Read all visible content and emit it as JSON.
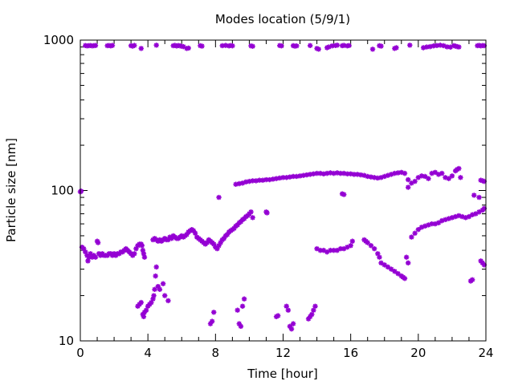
{
  "chart_data": {
    "type": "scatter",
    "title": "Modes location (5/9/1)",
    "xlabel": "Time [hour]",
    "ylabel": "Particle size [nm]",
    "xlim": [
      0,
      24
    ],
    "ylim": [
      10,
      1000
    ],
    "yscale": "log",
    "grid": false,
    "legend": "none",
    "marker_color": "#9400D3",
    "x_ticks": [
      0,
      4,
      8,
      12,
      16,
      20,
      24
    ],
    "x_tick_labels": [
      "0",
      "4",
      "8",
      "12",
      "16",
      "20",
      "24"
    ],
    "y_ticks": [
      10,
      100,
      1000
    ],
    "y_tick_labels": [
      "10",
      "100",
      "1000"
    ],
    "points": [
      [
        0.0,
        98
      ],
      [
        0.05,
        99
      ],
      [
        0.1,
        42
      ],
      [
        0.2,
        41
      ],
      [
        0.3,
        39
      ],
      [
        0.4,
        37
      ],
      [
        0.45,
        34
      ],
      [
        0.5,
        36
      ],
      [
        0.6,
        38
      ],
      [
        0.7,
        36
      ],
      [
        0.8,
        37
      ],
      [
        0.9,
        36
      ],
      [
        1.0,
        46
      ],
      [
        1.05,
        45
      ],
      [
        1.1,
        38
      ],
      [
        1.2,
        37
      ],
      [
        1.3,
        38
      ],
      [
        1.4,
        37
      ],
      [
        1.5,
        37
      ],
      [
        1.6,
        37
      ],
      [
        1.7,
        38
      ],
      [
        1.8,
        38
      ],
      [
        1.9,
        37
      ],
      [
        2.0,
        38
      ],
      [
        2.1,
        37
      ],
      [
        2.2,
        38
      ],
      [
        2.3,
        38
      ],
      [
        2.4,
        39
      ],
      [
        2.5,
        39
      ],
      [
        2.6,
        40
      ],
      [
        2.7,
        41
      ],
      [
        2.8,
        40
      ],
      [
        2.9,
        39
      ],
      [
        3.0,
        38
      ],
      [
        3.1,
        37
      ],
      [
        3.2,
        38
      ],
      [
        3.3,
        41
      ],
      [
        3.4,
        43
      ],
      [
        3.5,
        44
      ],
      [
        3.6,
        44
      ],
      [
        3.65,
        43
      ],
      [
        3.7,
        40
      ],
      [
        3.75,
        38
      ],
      [
        3.8,
        36
      ],
      [
        3.4,
        17
      ],
      [
        3.5,
        17.5
      ],
      [
        3.6,
        18
      ],
      [
        3.7,
        15
      ],
      [
        3.75,
        14.5
      ],
      [
        3.8,
        15.5
      ],
      [
        3.9,
        16
      ],
      [
        4.0,
        17
      ],
      [
        4.1,
        17.5
      ],
      [
        4.2,
        18
      ],
      [
        4.3,
        19
      ],
      [
        4.35,
        20
      ],
      [
        4.4,
        22
      ],
      [
        4.45,
        27
      ],
      [
        4.5,
        31
      ],
      [
        4.6,
        23
      ],
      [
        4.7,
        22
      ],
      [
        4.9,
        24
      ],
      [
        5.0,
        20
      ],
      [
        5.2,
        18.5
      ],
      [
        4.3,
        47
      ],
      [
        4.4,
        48
      ],
      [
        4.5,
        47
      ],
      [
        4.6,
        46
      ],
      [
        4.7,
        47
      ],
      [
        4.8,
        46
      ],
      [
        4.9,
        47
      ],
      [
        5.0,
        48
      ],
      [
        5.1,
        47
      ],
      [
        5.2,
        47
      ],
      [
        5.3,
        49
      ],
      [
        5.4,
        48
      ],
      [
        5.5,
        50
      ],
      [
        5.6,
        49
      ],
      [
        5.7,
        48
      ],
      [
        5.8,
        48
      ],
      [
        5.9,
        49
      ],
      [
        6.0,
        50
      ],
      [
        6.1,
        49
      ],
      [
        6.2,
        50
      ],
      [
        6.3,
        51
      ],
      [
        6.4,
        53
      ],
      [
        6.5,
        54
      ],
      [
        6.6,
        55
      ],
      [
        6.7,
        54
      ],
      [
        6.8,
        52
      ],
      [
        6.9,
        49
      ],
      [
        7.0,
        48
      ],
      [
        7.1,
        47
      ],
      [
        7.2,
        46
      ],
      [
        7.3,
        45
      ],
      [
        7.4,
        44
      ],
      [
        7.5,
        45
      ],
      [
        7.6,
        47
      ],
      [
        7.7,
        46
      ],
      [
        7.8,
        45
      ],
      [
        7.9,
        44
      ],
      [
        8.0,
        42
      ],
      [
        8.1,
        41
      ],
      [
        8.2,
        43
      ],
      [
        8.3,
        45
      ],
      [
        8.4,
        47
      ],
      [
        8.5,
        48
      ],
      [
        8.6,
        50
      ],
      [
        8.7,
        51
      ],
      [
        8.8,
        53
      ],
      [
        8.9,
        54
      ],
      [
        9.0,
        55
      ],
      [
        9.1,
        56
      ],
      [
        9.2,
        58
      ],
      [
        9.3,
        59
      ],
      [
        9.4,
        61
      ],
      [
        9.5,
        62
      ],
      [
        9.6,
        64
      ],
      [
        9.7,
        65
      ],
      [
        9.8,
        67
      ],
      [
        9.9,
        68
      ],
      [
        10.0,
        70
      ],
      [
        10.1,
        72
      ],
      [
        10.2,
        66
      ],
      [
        11.0,
        72
      ],
      [
        11.05,
        71
      ],
      [
        8.2,
        90
      ],
      [
        9.2,
        110
      ],
      [
        9.4,
        111
      ],
      [
        9.6,
        112
      ],
      [
        9.8,
        114
      ],
      [
        10.0,
        115
      ],
      [
        10.2,
        116
      ],
      [
        10.4,
        116
      ],
      [
        10.6,
        117
      ],
      [
        10.8,
        117
      ],
      [
        11.0,
        118
      ],
      [
        11.2,
        118
      ],
      [
        11.4,
        119
      ],
      [
        11.6,
        120
      ],
      [
        11.8,
        121
      ],
      [
        12.0,
        122
      ],
      [
        12.2,
        122
      ],
      [
        12.4,
        123
      ],
      [
        12.6,
        124
      ],
      [
        12.8,
        124
      ],
      [
        13.0,
        125
      ],
      [
        13.2,
        126
      ],
      [
        13.4,
        127
      ],
      [
        13.6,
        128
      ],
      [
        13.8,
        129
      ],
      [
        14.0,
        130
      ],
      [
        14.2,
        130
      ],
      [
        14.4,
        129
      ],
      [
        14.6,
        130
      ],
      [
        14.8,
        131
      ],
      [
        15.0,
        130
      ],
      [
        15.2,
        131
      ],
      [
        15.4,
        130
      ],
      [
        15.6,
        130
      ],
      [
        15.8,
        129
      ],
      [
        16.0,
        129
      ],
      [
        16.2,
        128
      ],
      [
        16.4,
        128
      ],
      [
        16.6,
        127
      ],
      [
        16.8,
        126
      ],
      [
        17.0,
        124
      ],
      [
        17.2,
        123
      ],
      [
        17.4,
        122
      ],
      [
        17.6,
        121
      ],
      [
        17.8,
        122
      ],
      [
        18.0,
        124
      ],
      [
        18.2,
        126
      ],
      [
        18.4,
        128
      ],
      [
        18.6,
        130
      ],
      [
        18.8,
        131
      ],
      [
        19.0,
        132
      ],
      [
        19.2,
        130
      ],
      [
        19.4,
        118
      ],
      [
        19.6,
        112
      ],
      [
        19.8,
        115
      ],
      [
        20.0,
        122
      ],
      [
        20.2,
        125
      ],
      [
        20.4,
        124
      ],
      [
        20.6,
        120
      ],
      [
        20.8,
        130
      ],
      [
        21.0,
        132
      ],
      [
        21.2,
        128
      ],
      [
        21.4,
        130
      ],
      [
        21.6,
        122
      ],
      [
        21.8,
        120
      ],
      [
        22.0,
        125
      ],
      [
        22.2,
        135
      ],
      [
        22.3,
        138
      ],
      [
        22.4,
        140
      ],
      [
        22.5,
        122
      ],
      [
        19.4,
        105
      ],
      [
        15.5,
        95
      ],
      [
        15.6,
        94
      ],
      [
        14.0,
        41
      ],
      [
        14.2,
        40
      ],
      [
        14.4,
        40
      ],
      [
        14.6,
        39
      ],
      [
        14.8,
        40
      ],
      [
        15.0,
        40
      ],
      [
        15.2,
        40
      ],
      [
        15.4,
        41
      ],
      [
        15.6,
        41
      ],
      [
        15.8,
        42
      ],
      [
        16.0,
        43
      ],
      [
        16.1,
        46
      ],
      [
        16.8,
        47
      ],
      [
        16.9,
        46
      ],
      [
        17.0,
        45
      ],
      [
        17.2,
        43
      ],
      [
        17.4,
        41
      ],
      [
        17.6,
        38
      ],
      [
        17.7,
        36
      ],
      [
        17.8,
        33
      ],
      [
        18.0,
        32
      ],
      [
        18.2,
        31
      ],
      [
        18.4,
        30
      ],
      [
        18.6,
        29
      ],
      [
        18.8,
        28
      ],
      [
        19.0,
        27
      ],
      [
        19.1,
        26.5
      ],
      [
        19.2,
        26
      ],
      [
        19.3,
        36
      ],
      [
        19.4,
        33
      ],
      [
        19.6,
        49
      ],
      [
        19.8,
        52
      ],
      [
        20.0,
        55
      ],
      [
        20.2,
        57
      ],
      [
        20.4,
        58
      ],
      [
        20.6,
        59
      ],
      [
        20.8,
        60
      ],
      [
        21.0,
        60
      ],
      [
        21.2,
        61
      ],
      [
        21.4,
        63
      ],
      [
        21.6,
        64
      ],
      [
        21.8,
        65
      ],
      [
        22.0,
        66
      ],
      [
        22.2,
        67
      ],
      [
        22.4,
        68
      ],
      [
        22.6,
        67
      ],
      [
        22.8,
        66
      ],
      [
        23.0,
        67
      ],
      [
        23.2,
        69
      ],
      [
        23.4,
        70
      ],
      [
        23.6,
        72
      ],
      [
        23.8,
        74
      ],
      [
        23.9,
        76
      ],
      [
        23.3,
        93
      ],
      [
        23.6,
        90
      ],
      [
        23.7,
        117
      ],
      [
        23.8,
        116
      ],
      [
        23.9,
        115
      ],
      [
        23.7,
        34
      ],
      [
        23.8,
        33
      ],
      [
        23.9,
        32
      ],
      [
        23.1,
        25
      ],
      [
        23.2,
        25.5
      ],
      [
        7.7,
        13
      ],
      [
        7.8,
        13.5
      ],
      [
        7.9,
        15.5
      ],
      [
        9.3,
        16
      ],
      [
        9.4,
        13
      ],
      [
        9.5,
        12.5
      ],
      [
        9.6,
        17
      ],
      [
        9.7,
        19
      ],
      [
        11.6,
        14.5
      ],
      [
        11.7,
        14.7
      ],
      [
        12.2,
        17
      ],
      [
        12.3,
        16
      ],
      [
        12.4,
        12.5
      ],
      [
        12.5,
        12
      ],
      [
        12.6,
        13
      ],
      [
        13.5,
        14
      ],
      [
        13.6,
        14.5
      ],
      [
        13.7,
        15
      ],
      [
        13.8,
        16
      ],
      [
        13.9,
        17
      ],
      [
        0.3,
        920
      ],
      [
        0.4,
        915
      ],
      [
        0.5,
        918
      ],
      [
        0.6,
        920
      ],
      [
        0.7,
        915
      ],
      [
        0.8,
        918
      ],
      [
        0.9,
        921
      ],
      [
        1.6,
        918
      ],
      [
        1.7,
        920
      ],
      [
        1.8,
        915
      ],
      [
        1.9,
        922
      ],
      [
        3.0,
        918
      ],
      [
        3.1,
        912
      ],
      [
        3.2,
        922
      ],
      [
        3.6,
        880
      ],
      [
        4.5,
        925
      ],
      [
        5.5,
        918
      ],
      [
        5.6,
        922
      ],
      [
        5.7,
        914
      ],
      [
        5.8,
        920
      ],
      [
        5.9,
        916
      ],
      [
        6.0,
        910
      ],
      [
        6.1,
        905
      ],
      [
        6.3,
        880
      ],
      [
        6.4,
        885
      ],
      [
        7.1,
        918
      ],
      [
        7.2,
        912
      ],
      [
        8.4,
        918
      ],
      [
        8.6,
        922
      ],
      [
        8.8,
        915
      ],
      [
        8.9,
        920
      ],
      [
        9.0,
        916
      ],
      [
        10.1,
        915
      ],
      [
        10.2,
        910
      ],
      [
        11.8,
        920
      ],
      [
        11.9,
        915
      ],
      [
        12.6,
        918
      ],
      [
        12.7,
        912
      ],
      [
        12.8,
        915
      ],
      [
        13.6,
        920
      ],
      [
        14.0,
        880
      ],
      [
        14.1,
        870
      ],
      [
        14.6,
        890
      ],
      [
        14.7,
        900
      ],
      [
        14.9,
        915
      ],
      [
        15.1,
        920
      ],
      [
        15.2,
        925
      ],
      [
        15.5,
        918
      ],
      [
        15.6,
        922
      ],
      [
        15.8,
        915
      ],
      [
        15.9,
        920
      ],
      [
        17.3,
        870
      ],
      [
        17.7,
        918
      ],
      [
        17.8,
        912
      ],
      [
        18.6,
        880
      ],
      [
        18.7,
        890
      ],
      [
        19.5,
        925
      ],
      [
        20.3,
        890
      ],
      [
        20.5,
        900
      ],
      [
        20.7,
        905
      ],
      [
        20.9,
        915
      ],
      [
        21.1,
        920
      ],
      [
        21.3,
        925
      ],
      [
        21.5,
        918
      ],
      [
        21.7,
        902
      ],
      [
        21.9,
        898
      ],
      [
        22.1,
        918
      ],
      [
        22.2,
        912
      ],
      [
        22.3,
        905
      ],
      [
        22.4,
        900
      ],
      [
        23.5,
        918
      ],
      [
        23.6,
        922
      ],
      [
        23.7,
        915
      ],
      [
        23.8,
        920
      ],
      [
        23.9,
        918
      ]
    ]
  }
}
